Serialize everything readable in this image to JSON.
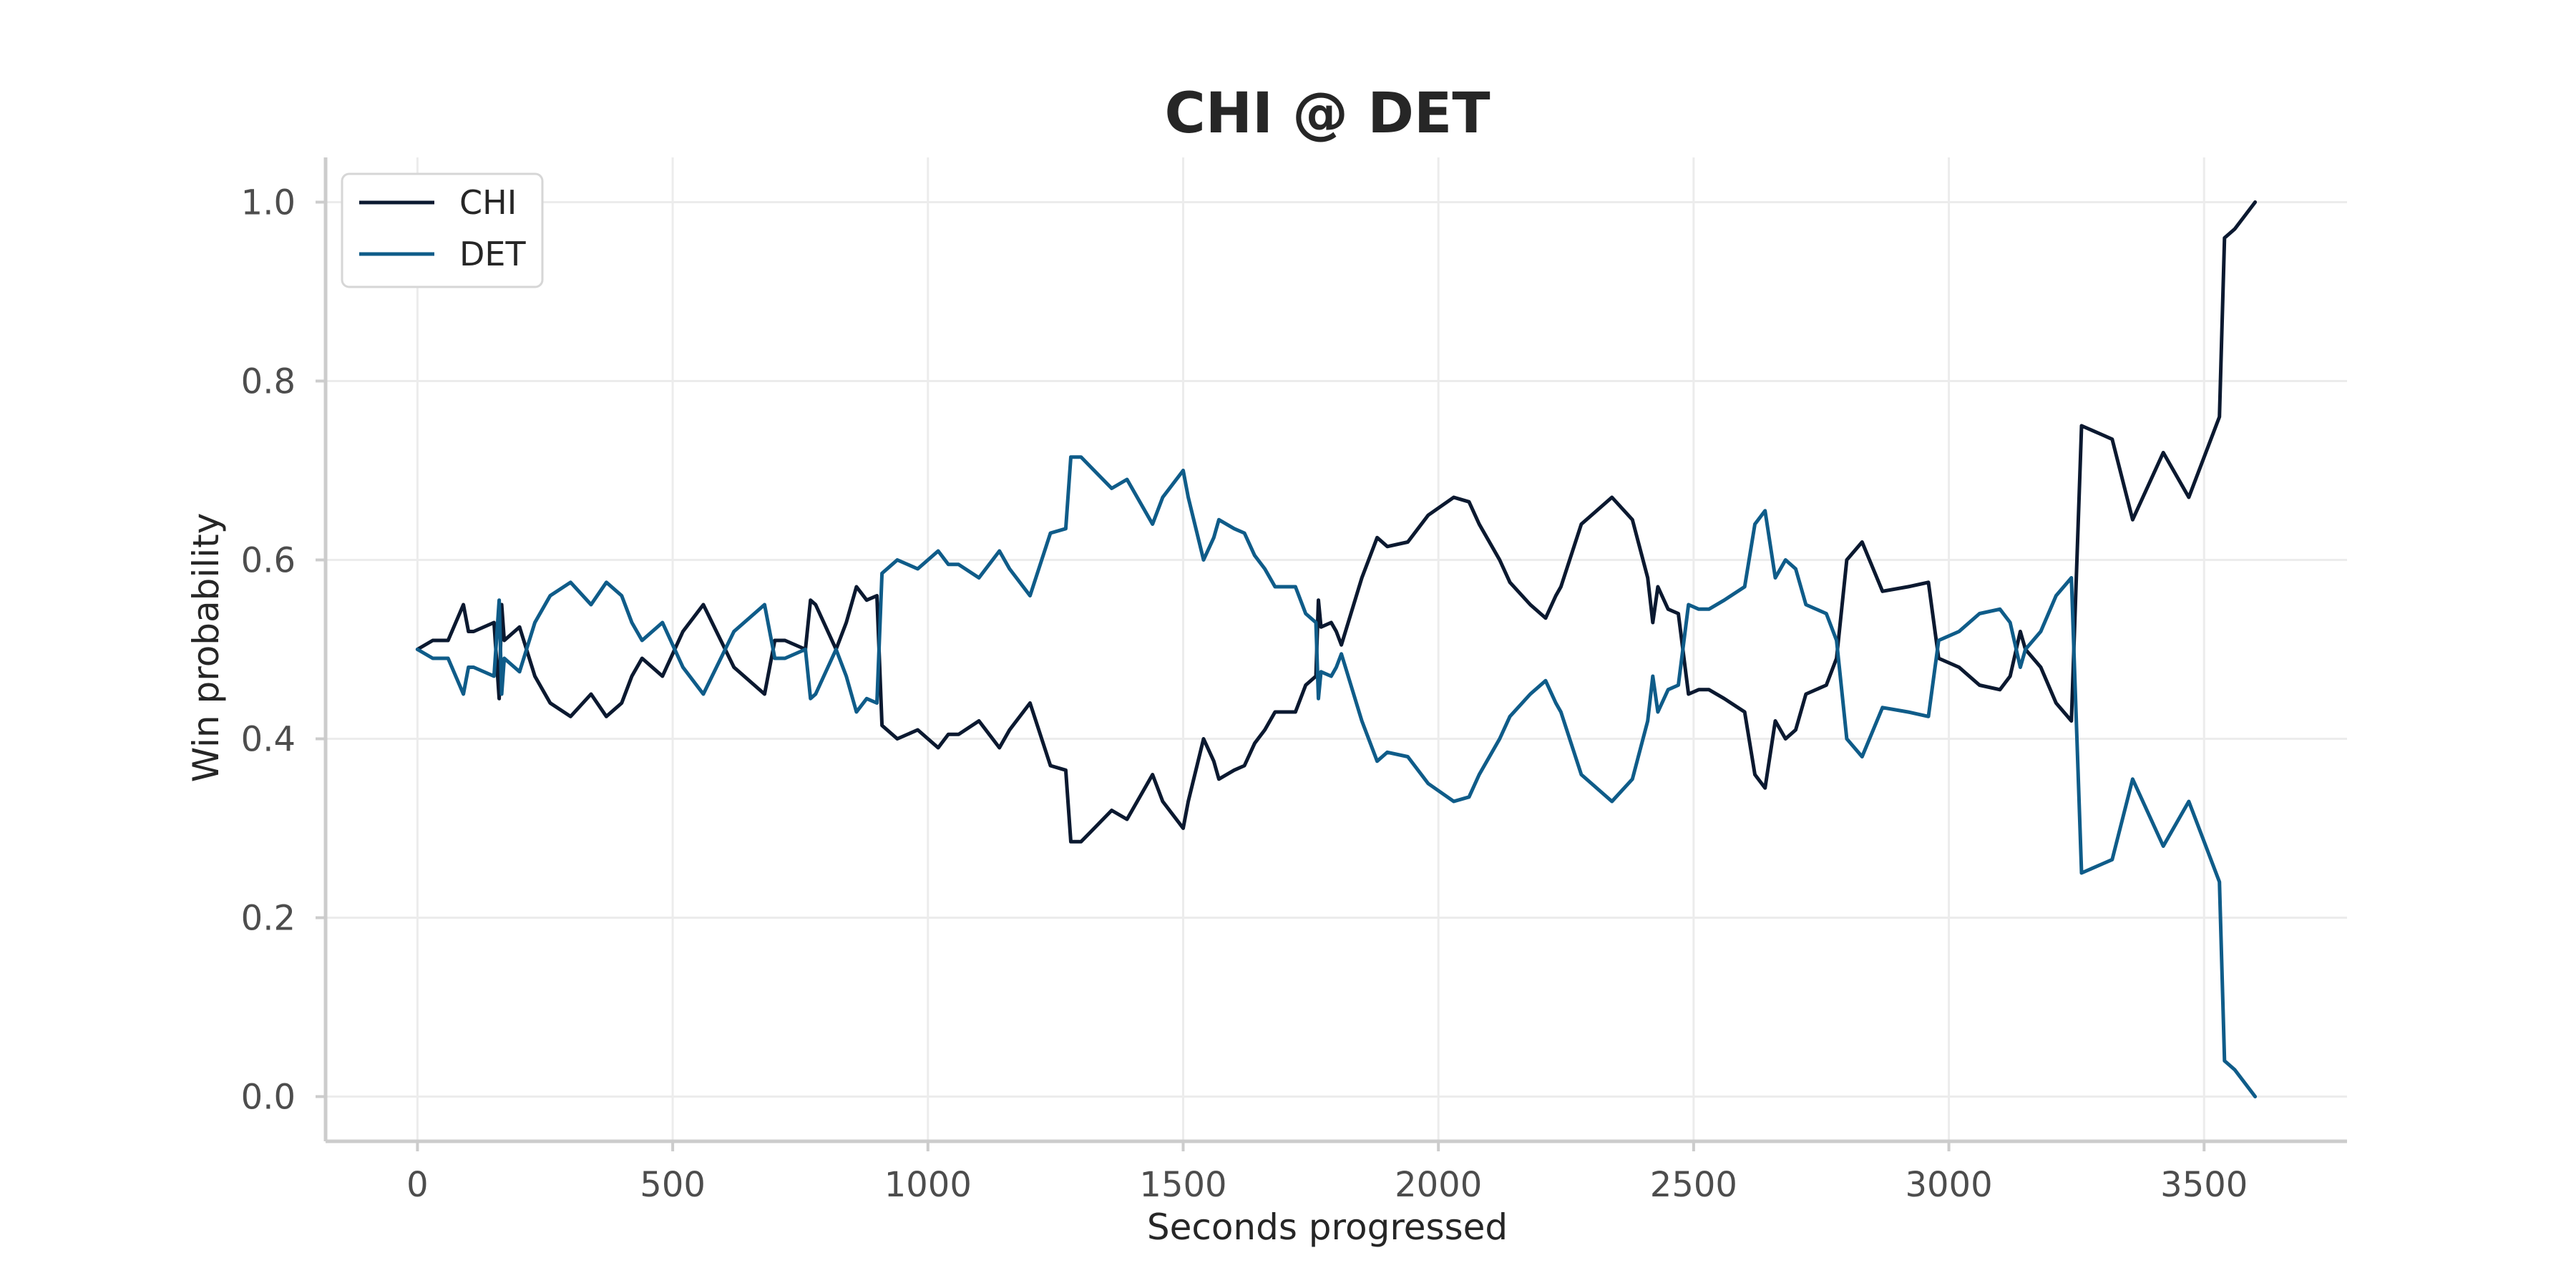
{
  "chart_data": {
    "type": "line",
    "title": "CHI @ DET",
    "xlabel": "Seconds progressed",
    "ylabel": "Win probability",
    "xlim": [
      -180,
      3780
    ],
    "ylim": [
      -0.05,
      1.05
    ],
    "xticks": [
      "0",
      "500",
      "1000",
      "1500",
      "2000",
      "2500",
      "3000",
      "3500"
    ],
    "yticks": [
      "0.0",
      "0.2",
      "0.4",
      "0.6",
      "0.8",
      "1.0"
    ],
    "grid": true,
    "legend": {
      "position": "top-left"
    },
    "series": [
      {
        "name": "CHI",
        "color": "#0b1930",
        "x": [
          0,
          30,
          60,
          90,
          100,
          110,
          150,
          160,
          165,
          170,
          200,
          230,
          260,
          300,
          340,
          370,
          400,
          420,
          440,
          480,
          520,
          560,
          620,
          680,
          700,
          720,
          760,
          770,
          780,
          820,
          840,
          860,
          880,
          900,
          910,
          940,
          980,
          1020,
          1040,
          1060,
          1100,
          1140,
          1160,
          1200,
          1240,
          1270,
          1280,
          1300,
          1360,
          1390,
          1440,
          1460,
          1500,
          1510,
          1540,
          1560,
          1570,
          1600,
          1620,
          1640,
          1660,
          1680,
          1700,
          1720,
          1740,
          1760,
          1765,
          1770,
          1790,
          1800,
          1810,
          1850,
          1880,
          1900,
          1940,
          1980,
          2030,
          2060,
          2080,
          2120,
          2140,
          2180,
          2210,
          2230,
          2240,
          2280,
          2300,
          2340,
          2380,
          2410,
          2420,
          2430,
          2450,
          2470,
          2490,
          2510,
          2530,
          2560,
          2600,
          2620,
          2640,
          2660,
          2680,
          2700,
          2720,
          2760,
          2780,
          2800,
          2830,
          2870,
          2920,
          2960,
          2980,
          3020,
          3060,
          3100,
          3120,
          3140,
          3150,
          3180,
          3210,
          3240,
          3260,
          3300,
          3320,
          3360,
          3420,
          3470,
          3530,
          3540,
          3560,
          3600
        ],
        "y": [
          0.5,
          0.51,
          0.51,
          0.55,
          0.52,
          0.52,
          0.53,
          0.445,
          0.55,
          0.51,
          0.525,
          0.47,
          0.44,
          0.425,
          0.45,
          0.425,
          0.44,
          0.47,
          0.49,
          0.47,
          0.52,
          0.55,
          0.48,
          0.45,
          0.51,
          0.51,
          0.5,
          0.555,
          0.55,
          0.5,
          0.53,
          0.57,
          0.555,
          0.56,
          0.415,
          0.4,
          0.41,
          0.39,
          0.405,
          0.405,
          0.42,
          0.39,
          0.41,
          0.44,
          0.37,
          0.365,
          0.285,
          0.285,
          0.32,
          0.31,
          0.36,
          0.33,
          0.3,
          0.33,
          0.4,
          0.375,
          0.355,
          0.365,
          0.37,
          0.395,
          0.41,
          0.43,
          0.43,
          0.43,
          0.46,
          0.47,
          0.555,
          0.525,
          0.53,
          0.52,
          0.505,
          0.58,
          0.625,
          0.615,
          0.62,
          0.65,
          0.67,
          0.665,
          0.64,
          0.6,
          0.575,
          0.55,
          0.535,
          0.56,
          0.57,
          0.64,
          0.65,
          0.67,
          0.645,
          0.58,
          0.53,
          0.57,
          0.545,
          0.54,
          0.45,
          0.455,
          0.455,
          0.445,
          0.43,
          0.36,
          0.345,
          0.42,
          0.4,
          0.41,
          0.45,
          0.46,
          0.49,
          0.6,
          0.62,
          0.565,
          0.57,
          0.575,
          0.49,
          0.48,
          0.46,
          0.455,
          0.47,
          0.52,
          0.5,
          0.48,
          0.44,
          0.42,
          0.75,
          0.74,
          0.735,
          0.645,
          0.72,
          0.67,
          0.76,
          0.96,
          0.97,
          1.0
        ]
      },
      {
        "name": "DET",
        "color": "#0f5c89",
        "x": [
          0,
          30,
          60,
          90,
          100,
          110,
          150,
          160,
          165,
          170,
          200,
          230,
          260,
          300,
          340,
          370,
          400,
          420,
          440,
          480,
          520,
          560,
          620,
          680,
          700,
          720,
          760,
          770,
          780,
          820,
          840,
          860,
          880,
          900,
          910,
          940,
          980,
          1020,
          1040,
          1060,
          1100,
          1140,
          1160,
          1200,
          1240,
          1270,
          1280,
          1300,
          1360,
          1390,
          1440,
          1460,
          1500,
          1510,
          1540,
          1560,
          1570,
          1600,
          1620,
          1640,
          1660,
          1680,
          1700,
          1720,
          1740,
          1760,
          1765,
          1770,
          1790,
          1800,
          1810,
          1850,
          1880,
          1900,
          1940,
          1980,
          2030,
          2060,
          2080,
          2120,
          2140,
          2180,
          2210,
          2230,
          2240,
          2280,
          2300,
          2340,
          2380,
          2410,
          2420,
          2430,
          2450,
          2470,
          2490,
          2510,
          2530,
          2560,
          2600,
          2620,
          2640,
          2660,
          2680,
          2700,
          2720,
          2760,
          2780,
          2800,
          2830,
          2870,
          2920,
          2960,
          2980,
          3020,
          3060,
          3100,
          3120,
          3140,
          3150,
          3180,
          3210,
          3240,
          3260,
          3300,
          3320,
          3360,
          3420,
          3470,
          3530,
          3540,
          3560,
          3600
        ],
        "y": [
          0.5,
          0.49,
          0.49,
          0.45,
          0.48,
          0.48,
          0.47,
          0.555,
          0.45,
          0.49,
          0.475,
          0.53,
          0.56,
          0.575,
          0.55,
          0.575,
          0.56,
          0.53,
          0.51,
          0.53,
          0.48,
          0.45,
          0.52,
          0.55,
          0.49,
          0.49,
          0.5,
          0.445,
          0.45,
          0.5,
          0.47,
          0.43,
          0.445,
          0.44,
          0.585,
          0.6,
          0.59,
          0.61,
          0.595,
          0.595,
          0.58,
          0.61,
          0.59,
          0.56,
          0.63,
          0.635,
          0.715,
          0.715,
          0.68,
          0.69,
          0.64,
          0.67,
          0.7,
          0.67,
          0.6,
          0.625,
          0.645,
          0.635,
          0.63,
          0.605,
          0.59,
          0.57,
          0.57,
          0.57,
          0.54,
          0.53,
          0.445,
          0.475,
          0.47,
          0.48,
          0.495,
          0.42,
          0.375,
          0.385,
          0.38,
          0.35,
          0.33,
          0.335,
          0.36,
          0.4,
          0.425,
          0.45,
          0.465,
          0.44,
          0.43,
          0.36,
          0.35,
          0.33,
          0.355,
          0.42,
          0.47,
          0.43,
          0.455,
          0.46,
          0.55,
          0.545,
          0.545,
          0.555,
          0.57,
          0.64,
          0.655,
          0.58,
          0.6,
          0.59,
          0.55,
          0.54,
          0.51,
          0.4,
          0.38,
          0.435,
          0.43,
          0.425,
          0.51,
          0.52,
          0.54,
          0.545,
          0.53,
          0.48,
          0.5,
          0.52,
          0.56,
          0.58,
          0.25,
          0.26,
          0.265,
          0.355,
          0.28,
          0.33,
          0.24,
          0.04,
          0.03,
          0.0
        ]
      }
    ]
  }
}
